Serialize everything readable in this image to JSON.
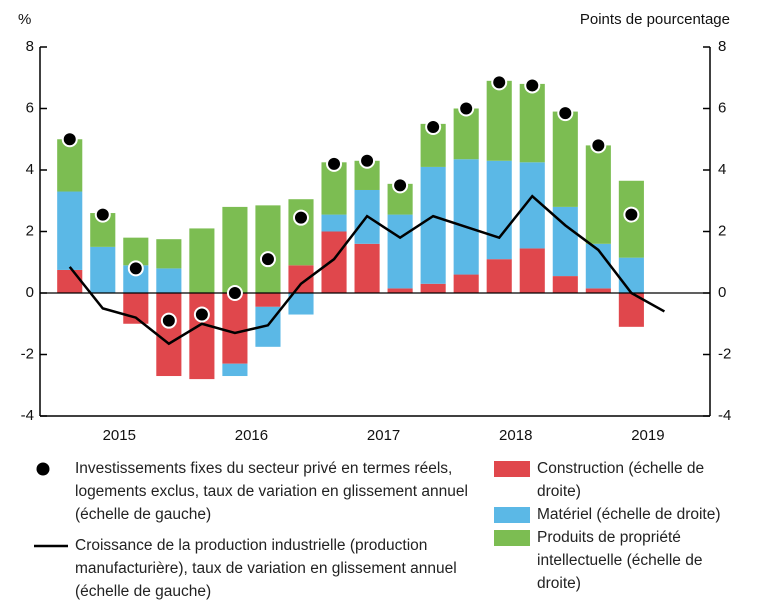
{
  "chart_data": {
    "type": "bar",
    "y_label": "%",
    "y2_label": "Points de pourcentage",
    "x": [
      2015.125,
      2015.375,
      2015.625,
      2015.875,
      2016.125,
      2016.375,
      2016.625,
      2016.875,
      2017.125,
      2017.375,
      2017.625,
      2017.875,
      2018.125,
      2018.375,
      2018.625,
      2018.875,
      2019.125,
      2019.375,
      2019.625
    ],
    "xlim": [
      2014.9,
      2019.97
    ],
    "xticks": [
      {
        "value": 2015.5,
        "label": "2015"
      },
      {
        "value": 2016.5,
        "label": "2016"
      },
      {
        "value": 2017.5,
        "label": "2017"
      },
      {
        "value": 2018.5,
        "label": "2018"
      },
      {
        "value": 2019.5,
        "label": "2019"
      }
    ],
    "ylim": [
      -4,
      8
    ],
    "yticks": [
      -4,
      -2,
      0,
      2,
      4,
      6,
      8
    ],
    "y2lim": [
      -4,
      8
    ],
    "y2ticks": [
      -4,
      -2,
      0,
      2,
      4,
      6,
      8
    ],
    "zeroline": true,
    "series": [
      {
        "name": "Construction (échelle de droite)",
        "type": "bar",
        "axis": "y2",
        "color": "#e0474c",
        "values": [
          0.75,
          0,
          -1.0,
          -2.7,
          -2.8,
          -2.3,
          -0.45,
          0.9,
          2.0,
          1.6,
          0.15,
          0.3,
          0.6,
          1.1,
          1.45,
          0.55,
          0.15,
          -1.1,
          null
        ]
      },
      {
        "name": "Matériel (échelle de droite)",
        "type": "bar",
        "axis": "y2",
        "color": "#5bb8e6",
        "values": [
          2.55,
          1.5,
          0.9,
          0.8,
          0,
          -0.4,
          -1.3,
          -0.7,
          0.55,
          1.75,
          2.4,
          3.8,
          3.75,
          3.2,
          2.8,
          2.25,
          1.45,
          1.15,
          null
        ]
      },
      {
        "name": "Produits de propriété intellectuelle (échelle de droite)",
        "type": "bar",
        "axis": "y2",
        "color": "#7cbd52",
        "values": [
          1.7,
          1.1,
          0.9,
          0.95,
          2.1,
          2.8,
          2.85,
          2.15,
          1.7,
          0.95,
          1.0,
          1.4,
          1.65,
          2.6,
          2.55,
          3.1,
          3.2,
          2.5,
          null
        ]
      },
      {
        "name": "Investissements fixes du secteur privé en termes réels, logements exclus, taux de variation en glissement annuel (échelle de gauche)",
        "type": "scatter",
        "color": "#000000",
        "values": [
          5.0,
          2.55,
          0.8,
          -0.9,
          -0.7,
          0.0,
          1.1,
          2.45,
          4.2,
          4.3,
          3.5,
          5.4,
          6.0,
          6.85,
          6.75,
          5.85,
          4.8,
          2.55,
          null
        ]
      },
      {
        "name": "Croissance de la production industrielle (production manufacturière), taux de variation en glissement annuel (échelle de gauche)",
        "type": "line",
        "color": "#000000",
        "values": [
          0.85,
          -0.5,
          -0.8,
          -1.65,
          -1.0,
          -1.3,
          -1.05,
          0.3,
          1.1,
          2.5,
          1.8,
          2.5,
          2.15,
          1.8,
          3.15,
          2.2,
          1.4,
          0.0,
          -0.6
        ]
      }
    ]
  }
}
